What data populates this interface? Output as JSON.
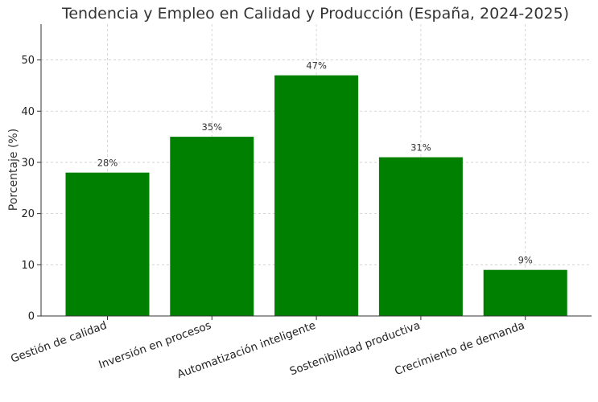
{
  "chart_data": {
    "type": "bar",
    "title": "Tendencia y Empleo en Calidad y Producción (España, 2024-2025)",
    "xlabel": "",
    "ylabel": "Porcentaje (%)",
    "categories": [
      "Gestión de calidad",
      "Inversión en procesos",
      "Automatización inteligente",
      "Sostenibilidad productiva",
      "Crecimiento de demanda"
    ],
    "values": [
      28,
      35,
      47,
      31,
      9
    ],
    "value_labels": [
      "28%",
      "35%",
      "47%",
      "31%",
      "9%"
    ],
    "ylim": [
      0,
      57
    ],
    "yticks": [
      0,
      10,
      20,
      30,
      40,
      50
    ],
    "bar_color": "#008000",
    "grid": true
  }
}
